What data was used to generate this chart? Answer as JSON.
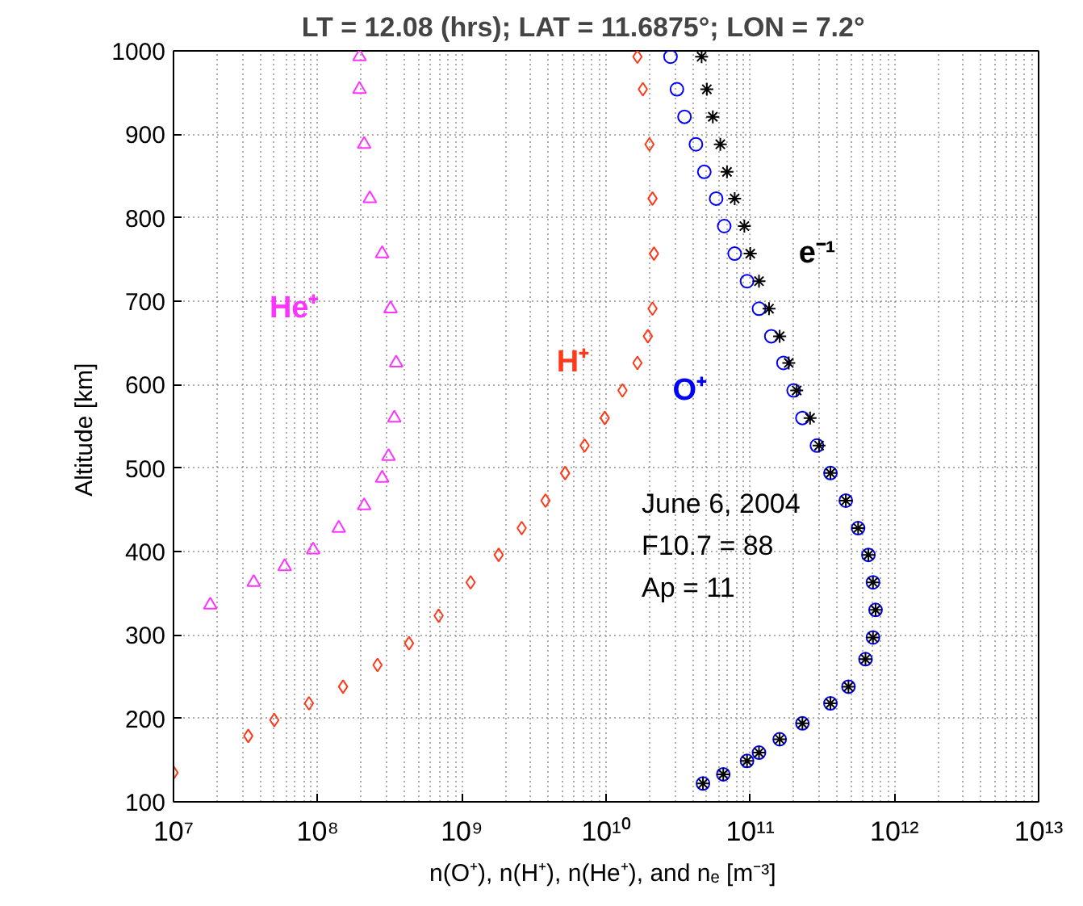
{
  "chart_data": {
    "type": "scatter",
    "title": "LT = 12.08 (hrs);    LAT = 11.6875°;    LON = 7.2°",
    "xlabel": "n(O⁺), n(H⁺), n(He⁺), and nₑ  [m⁻³]",
    "ylabel": "Altitude  [km]",
    "log": "x",
    "grid": true,
    "xlim": [
      10000000.0,
      10000000000000.0
    ],
    "ylim": [
      100,
      1000
    ],
    "xticks": [
      {
        "value": 10000000.0,
        "label": "10⁷"
      },
      {
        "value": 100000000.0,
        "label": "10⁸"
      },
      {
        "value": 1000000000.0,
        "label": "10⁹"
      },
      {
        "value": 10000000000.0,
        "label": "10¹⁰"
      },
      {
        "value": 100000000000.0,
        "label": "10¹¹"
      },
      {
        "value": 1000000000000.0,
        "label": "10¹²"
      },
      {
        "value": 10000000000000.0,
        "label": "10¹³"
      }
    ],
    "yticks": [
      100,
      200,
      300,
      400,
      500,
      600,
      700,
      800,
      900,
      1000
    ],
    "annotations": [
      "June 6, 2004",
      "F10.7 = 88",
      "Ap = 11"
    ],
    "series": [
      {
        "name": "He⁺",
        "color": "#ff33ff",
        "marker": "triangle",
        "x": [
          18000000.0,
          36000000.0,
          59000000.0,
          93000000.0,
          140000000.0,
          210000000.0,
          280000000.0,
          310000000.0,
          340000000.0,
          350000000.0,
          320000000.0,
          280000000.0,
          230000000.0,
          210000000.0,
          195000000.0,
          195000000.0
        ],
        "values": [
          336,
          363,
          382,
          402,
          428,
          455,
          488,
          514,
          560,
          626,
          691,
          757,
          823,
          888,
          954,
          993
        ]
      },
      {
        "name": "H⁺",
        "color": "#ff3a1a",
        "marker": "diamond",
        "x": [
          10000000.0,
          33000000.0,
          50000000.0,
          87000000.0,
          150000000.0,
          260000000.0,
          430000000.0,
          690000000.0,
          1150000000.0,
          1800000000.0,
          2600000000.0,
          3800000000.0,
          5200000000.0,
          7100000000.0,
          9800000000.0,
          13000000000.0,
          16500000000.0,
          19500000000.0,
          21000000000.0,
          21500000000.0,
          21000000000.0,
          20000000000.0,
          18000000000.0,
          16500000000.0
        ],
        "values": [
          135,
          179,
          198,
          218,
          238,
          264,
          290,
          323,
          363,
          396,
          428,
          461,
          494,
          527,
          560,
          593,
          626,
          658,
          691,
          757,
          823,
          888,
          954,
          993
        ]
      },
      {
        "name": "O⁺",
        "color": "#0000ff",
        "marker": "circle",
        "x": [
          47000000000.0,
          65000000000.0,
          95000000000.0,
          115000000000.0,
          160000000000.0,
          230000000000.0,
          360000000000.0,
          480000000000.0,
          630000000000.0,
          710000000000.0,
          740000000000.0,
          710000000000.0,
          660000000000.0,
          560000000000.0,
          460000000000.0,
          360000000000.0,
          290000000000.0,
          230000000000.0,
          200000000000.0,
          170000000000.0,
          140000000000.0,
          115000000000.0,
          95000000000.0,
          78000000000.0,
          66000000000.0,
          58000000000.0,
          48000000000.0,
          42000000000.0,
          35000000000.0,
          31000000000.0,
          28000000000.0
        ],
        "values": [
          122,
          133,
          149,
          159,
          175,
          194,
          218,
          238,
          271,
          297,
          330,
          363,
          396,
          428,
          461,
          494,
          527,
          560,
          593,
          626,
          658,
          691,
          724,
          757,
          790,
          823,
          855,
          888,
          921,
          954,
          993
        ]
      },
      {
        "name": "e⁻¹",
        "color": "#000000",
        "marker": "cross",
        "x": [
          47000000000.0,
          65000000000.0,
          95000000000.0,
          115000000000.0,
          160000000000.0,
          230000000000.0,
          360000000000.0,
          480000000000.0,
          630000000000.0,
          710000000000.0,
          740000000000.0,
          710000000000.0,
          660000000000.0,
          560000000000.0,
          460000000000.0,
          360000000000.0,
          300000000000.0,
          260000000000.0,
          210000000000.0,
          185000000000.0,
          160000000000.0,
          135000000000.0,
          115000000000.0,
          100000000000.0,
          91000000000.0,
          78000000000.0,
          69000000000.0,
          62000000000.0,
          55000000000.0,
          50000000000.0,
          46000000000.0
        ],
        "values": [
          122,
          133,
          149,
          159,
          175,
          194,
          218,
          238,
          271,
          297,
          330,
          363,
          396,
          428,
          461,
          494,
          527,
          560,
          593,
          626,
          658,
          691,
          724,
          757,
          790,
          823,
          855,
          888,
          921,
          954,
          993
        ]
      }
    ]
  }
}
